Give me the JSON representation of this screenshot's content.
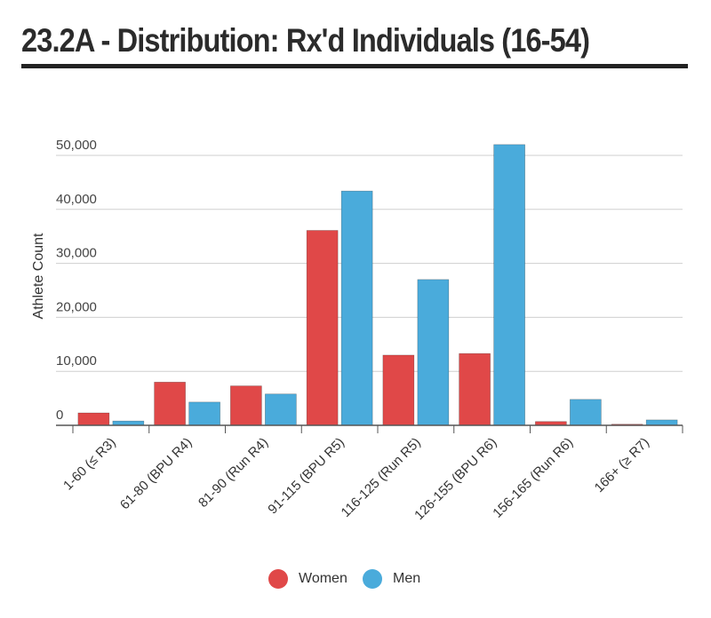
{
  "title": "23.2A - Distribution: Rx'd Individuals (16-54)",
  "chart_data": {
    "type": "bar",
    "title": "23.2A - Distribution: Rx'd Individuals (16-54)",
    "xlabel": "",
    "ylabel": "Athlete Count",
    "ylim": [
      0,
      50000
    ],
    "yticks": [
      0,
      10000,
      20000,
      30000,
      40000,
      50000
    ],
    "ytick_labels": [
      "0",
      "10,000",
      "20,000",
      "30,000",
      "40,000",
      "50,000"
    ],
    "grid": true,
    "legend_position": "bottom",
    "categories": [
      "1-60 (≤ R3)",
      "61-80 (BPU R4)",
      "81-90 (Run R4)",
      "91-115 (BPU R5)",
      "116-125 (Run R5)",
      "126-155 (BPU R6)",
      "156-165 (Run R6)",
      "166+ (≥ R7)"
    ],
    "series": [
      {
        "name": "Women",
        "color": "#e04848",
        "values": [
          2300,
          8000,
          7300,
          36100,
          13000,
          13300,
          700,
          200
        ]
      },
      {
        "name": "Men",
        "color": "#4aabdb",
        "values": [
          800,
          4300,
          5800,
          43400,
          27000,
          52000,
          4800,
          1000
        ]
      }
    ]
  }
}
